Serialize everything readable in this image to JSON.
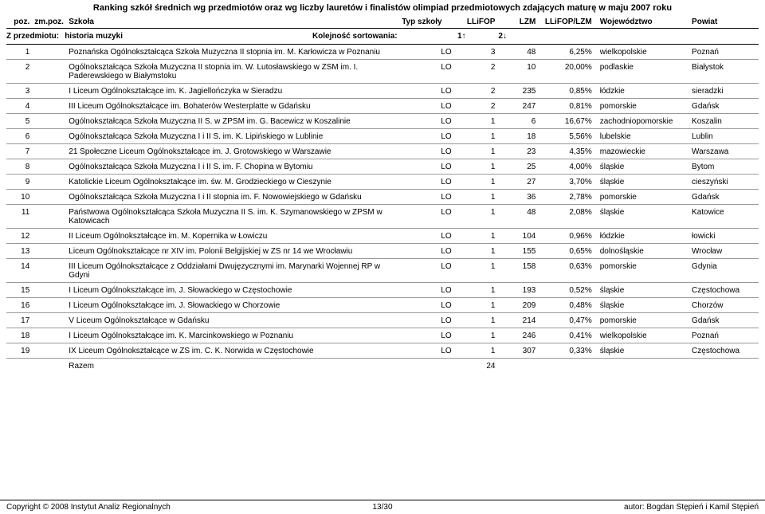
{
  "title": "Ranking szkół średnich wg przedmiotów oraz wg liczby lauretów i finalistów olimpiad przedmiotowych zdających maturę w maju 2007 roku",
  "header": {
    "poz": "poz.",
    "zmpoz": "zm.poz.",
    "szkola": "Szkoła",
    "typ": "Typ szkoły",
    "llifop": "LLiFOP",
    "lzm": "LZM",
    "ratio": "LLiFOP/LZM",
    "woj": "Województwo",
    "powiat": "Powiat"
  },
  "sort": {
    "label_prefix": "Z przedmiotu: ",
    "subject": "historia muzyki",
    "kolejnosc": "Kolejność sortowania:",
    "col1": "1",
    "col2": "2"
  },
  "rows": [
    {
      "poz": "1",
      "zm": "",
      "szkola": "Poznańska Ogólnokształcąca Szkoła Muzyczna II stopnia im. M. Karłowicza w Poznaniu",
      "typ": "LO",
      "llifop": "3",
      "lzm": "48",
      "ratio": "6,25%",
      "woj": "wielkopolskie",
      "powiat": "Poznań"
    },
    {
      "poz": "2",
      "zm": "",
      "szkola": "Ogólnokształcąca Szkoła Muzyczna II stopnia im. W. Lutosławskiego w ZSM im. I. Paderewskiego w Białymstoku",
      "typ": "LO",
      "llifop": "2",
      "lzm": "10",
      "ratio": "20,00%",
      "woj": "podlaskie",
      "powiat": "Białystok"
    },
    {
      "poz": "3",
      "zm": "",
      "szkola": "I Liceum Ogólnokształcące im. K. Jagiellończyka w Sieradzu",
      "typ": "LO",
      "llifop": "2",
      "lzm": "235",
      "ratio": "0,85%",
      "woj": "łódzkie",
      "powiat": "sieradzki"
    },
    {
      "poz": "4",
      "zm": "",
      "szkola": "III Liceum Ogólnokształcące im. Bohaterów Westerplatte w Gdańsku",
      "typ": "LO",
      "llifop": "2",
      "lzm": "247",
      "ratio": "0,81%",
      "woj": "pomorskie",
      "powiat": "Gdańsk"
    },
    {
      "poz": "5",
      "zm": "",
      "szkola": "Ogólnokształcąca Szkoła Muzyczna II S. w ZPSM im. G. Bacewicz w Koszalinie",
      "typ": "LO",
      "llifop": "1",
      "lzm": "6",
      "ratio": "16,67%",
      "woj": "zachodniopomorskie",
      "powiat": "Koszalin"
    },
    {
      "poz": "6",
      "zm": "",
      "szkola": "Ogólnokształcąca Szkoła Muzyczna I i II S. im. K. Lipińskiego w Lublinie",
      "typ": "LO",
      "llifop": "1",
      "lzm": "18",
      "ratio": "5,56%",
      "woj": "lubelskie",
      "powiat": "Lublin"
    },
    {
      "poz": "7",
      "zm": "",
      "szkola": "21 Społeczne Liceum Ogólnokształcące im. J. Grotowskiego w Warszawie",
      "typ": "LO",
      "llifop": "1",
      "lzm": "23",
      "ratio": "4,35%",
      "woj": "mazowieckie",
      "powiat": "Warszawa"
    },
    {
      "poz": "8",
      "zm": "",
      "szkola": "Ogólnokształcąca Szkoła Muzyczna I i II S. im. F. Chopina w Bytomiu",
      "typ": "LO",
      "llifop": "1",
      "lzm": "25",
      "ratio": "4,00%",
      "woj": "śląskie",
      "powiat": "Bytom"
    },
    {
      "poz": "9",
      "zm": "",
      "szkola": "Katolickie Liceum Ogólnokształcące im. św. M. Grodzieckiego w Cieszynie",
      "typ": "LO",
      "llifop": "1",
      "lzm": "27",
      "ratio": "3,70%",
      "woj": "śląskie",
      "powiat": "cieszyński"
    },
    {
      "poz": "10",
      "zm": "",
      "szkola": "Ogólnokształcąca Szkoła Muzyczna I i II stopnia im. F. Nowowiejskiego w Gdańsku",
      "typ": "LO",
      "llifop": "1",
      "lzm": "36",
      "ratio": "2,78%",
      "woj": "pomorskie",
      "powiat": "Gdańsk"
    },
    {
      "poz": "11",
      "zm": "",
      "szkola": "Państwowa Ogólnokształcąca Szkoła Muzyczna II S. im. K. Szymanowskiego w ZPSM w Katowicach",
      "typ": "LO",
      "llifop": "1",
      "lzm": "48",
      "ratio": "2,08%",
      "woj": "śląskie",
      "powiat": "Katowice"
    },
    {
      "poz": "12",
      "zm": "",
      "szkola": "II Liceum Ogólnokształcące im. M. Kopernika w Łowiczu",
      "typ": "LO",
      "llifop": "1",
      "lzm": "104",
      "ratio": "0,96%",
      "woj": "łódzkie",
      "powiat": "łowicki"
    },
    {
      "poz": "13",
      "zm": "",
      "szkola": "Liceum Ogólnokształcące nr XIV im. Polonii Belgijskiej w ZS nr 14 we Wrocławiu",
      "typ": "LO",
      "llifop": "1",
      "lzm": "155",
      "ratio": "0,65%",
      "woj": "dolnośląskie",
      "powiat": "Wrocław"
    },
    {
      "poz": "14",
      "zm": "",
      "szkola": "III Liceum Ogólnokształcące z Oddziałami Dwujęzycznymi im. Marynarki Wojennej RP w Gdyni",
      "typ": "LO",
      "llifop": "1",
      "lzm": "158",
      "ratio": "0,63%",
      "woj": "pomorskie",
      "powiat": "Gdynia"
    },
    {
      "poz": "15",
      "zm": "",
      "szkola": "I Liceum Ogólnokształcące im. J. Słowackiego w Częstochowie",
      "typ": "LO",
      "llifop": "1",
      "lzm": "193",
      "ratio": "0,52%",
      "woj": "śląskie",
      "powiat": "Częstochowa"
    },
    {
      "poz": "16",
      "zm": "",
      "szkola": "I Liceum Ogólnokształcące im. J. Słowackiego w Chorzowie",
      "typ": "LO",
      "llifop": "1",
      "lzm": "209",
      "ratio": "0,48%",
      "woj": "śląskie",
      "powiat": "Chorzów"
    },
    {
      "poz": "17",
      "zm": "",
      "szkola": "V Liceum Ogólnokształcące w Gdańsku",
      "typ": "LO",
      "llifop": "1",
      "lzm": "214",
      "ratio": "0,47%",
      "woj": "pomorskie",
      "powiat": "Gdańsk"
    },
    {
      "poz": "18",
      "zm": "",
      "szkola": "I Liceum Ogólnokształcące im. K. Marcinkowskiego w Poznaniu",
      "typ": "LO",
      "llifop": "1",
      "lzm": "246",
      "ratio": "0,41%",
      "woj": "wielkopolskie",
      "powiat": "Poznań"
    },
    {
      "poz": "19",
      "zm": "",
      "szkola": "IX Liceum Ogólnokształcące w ZS im. C. K. Norwida w Częstochowie",
      "typ": "LO",
      "llifop": "1",
      "lzm": "307",
      "ratio": "0,33%",
      "woj": "śląskie",
      "powiat": "Częstochowa"
    }
  ],
  "razem": {
    "label": "Razem",
    "llifop": "24"
  },
  "footer": {
    "copyright": "Copyright © 2008 Instytut Analiz Regionalnych",
    "page": "13/30",
    "author": "autor: Bogdan Stępień i Kamil Stępień"
  }
}
